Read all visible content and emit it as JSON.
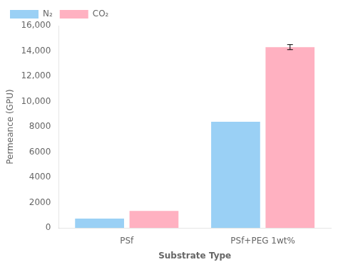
{
  "chart_data": {
    "type": "bar",
    "categories": [
      "PSf",
      "PSf+PEG 1wt%"
    ],
    "series": [
      {
        "name": "N₂",
        "values": [
          750,
          8400
        ]
      },
      {
        "name": "CO₂",
        "values": [
          1350,
          14300
        ],
        "error": [
          null,
          200
        ]
      }
    ],
    "xlabel": "Substrate Type",
    "ylabel": "Permeance (GPU)",
    "ylim": [
      0,
      16000
    ],
    "yticks": [
      0,
      2000,
      4000,
      6000,
      8000,
      {
        "value": 10000,
        "label": "10,000"
      },
      {
        "value": 12000,
        "label": "12,000"
      },
      {
        "value": 14000,
        "label": "14,000"
      },
      {
        "value": 16000,
        "label": "16,000"
      }
    ],
    "grid": false,
    "legend": "upper left"
  }
}
